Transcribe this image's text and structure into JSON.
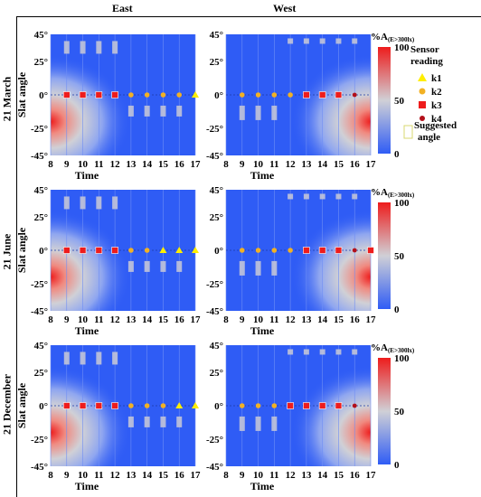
{
  "columns": [
    "East",
    "West"
  ],
  "rows": [
    "21 March",
    "21 June",
    "21 December"
  ],
  "legend": {
    "title": "Sensor reading",
    "items": [
      {
        "label": "k1",
        "color": "#ffee00",
        "shape": "triangle"
      },
      {
        "label": "k2",
        "color": "#f2b124",
        "shape": "circle"
      },
      {
        "label": "k3",
        "color": "#ee1c1c",
        "shape": "square"
      },
      {
        "label": "k4",
        "color": "#b3101a",
        "shape": "small-circle"
      }
    ],
    "suggested_label": "Suggested angle"
  },
  "colorbar": {
    "title_main": "%A",
    "title_sub": "(E>300lx)",
    "ticks": [
      "100",
      "50",
      "0"
    ],
    "colors": {
      "low": "#2f5cf5",
      "mid": "#d0d0d6",
      "high": "#ee1c1c"
    }
  },
  "chart_data": [
    {
      "type": "heatmap",
      "row": "21 March",
      "column": "East",
      "xlabel": "Time",
      "ylabel": "Slat angle",
      "x": [
        8,
        9,
        10,
        11,
        12,
        13,
        14,
        15,
        16,
        17
      ],
      "y_ticks": [
        "45°",
        "25°",
        "0°",
        "-25°",
        "-45°"
      ],
      "ylim": [
        -45,
        45
      ],
      "points": [
        {
          "x": 9,
          "k": "k3"
        },
        {
          "x": 10,
          "k": "k3"
        },
        {
          "x": 11,
          "k": "k3"
        },
        {
          "x": 12,
          "k": "k3"
        },
        {
          "x": 13,
          "k": "k2"
        },
        {
          "x": 14,
          "k": "k2"
        },
        {
          "x": 15,
          "k": "k2"
        },
        {
          "x": 16,
          "k": "k2"
        },
        {
          "x": 17,
          "k": "k1"
        }
      ],
      "hot_side": "left"
    },
    {
      "type": "heatmap",
      "row": "21 March",
      "column": "West",
      "xlabel": "Time",
      "ylabel": "",
      "x": [
        8,
        9,
        10,
        11,
        12,
        13,
        14,
        15,
        16,
        17
      ],
      "y_ticks": [
        "45°",
        "25°",
        "0°",
        "-25°",
        "-45°"
      ],
      "ylim": [
        -45,
        45
      ],
      "points": [
        {
          "x": 9,
          "k": "k2"
        },
        {
          "x": 10,
          "k": "k2"
        },
        {
          "x": 11,
          "k": "k2"
        },
        {
          "x": 12,
          "k": "k2"
        },
        {
          "x": 13,
          "k": "k3"
        },
        {
          "x": 14,
          "k": "k3"
        },
        {
          "x": 15,
          "k": "k3"
        },
        {
          "x": 16,
          "k": "k4"
        }
      ],
      "hot_side": "right"
    },
    {
      "type": "heatmap",
      "row": "21 June",
      "column": "East",
      "xlabel": "Time",
      "ylabel": "Slat angle",
      "x": [
        8,
        9,
        10,
        11,
        12,
        13,
        14,
        15,
        16,
        17
      ],
      "y_ticks": [
        "45°",
        "25°",
        "0°",
        "-25°",
        "-45°"
      ],
      "ylim": [
        -45,
        45
      ],
      "points": [
        {
          "x": 9,
          "k": "k3"
        },
        {
          "x": 10,
          "k": "k3"
        },
        {
          "x": 11,
          "k": "k3"
        },
        {
          "x": 12,
          "k": "k3"
        },
        {
          "x": 13,
          "k": "k2"
        },
        {
          "x": 14,
          "k": "k2"
        },
        {
          "x": 15,
          "k": "k1"
        },
        {
          "x": 16,
          "k": "k1"
        },
        {
          "x": 17,
          "k": "k1"
        }
      ],
      "hot_side": "left"
    },
    {
      "type": "heatmap",
      "row": "21 June",
      "column": "West",
      "xlabel": "Time",
      "ylabel": "",
      "x": [
        8,
        9,
        10,
        11,
        12,
        13,
        14,
        15,
        16,
        17
      ],
      "y_ticks": [
        "45°",
        "25°",
        "0°",
        "-25°",
        "-45°"
      ],
      "ylim": [
        -45,
        45
      ],
      "points": [
        {
          "x": 9,
          "k": "k2"
        },
        {
          "x": 10,
          "k": "k2"
        },
        {
          "x": 11,
          "k": "k2"
        },
        {
          "x": 12,
          "k": "k2"
        },
        {
          "x": 13,
          "k": "k3"
        },
        {
          "x": 14,
          "k": "k3"
        },
        {
          "x": 15,
          "k": "k3"
        },
        {
          "x": 16,
          "k": "k4"
        },
        {
          "x": 17,
          "k": "k3"
        }
      ],
      "hot_side": "right"
    },
    {
      "type": "heatmap",
      "row": "21 December",
      "column": "East",
      "xlabel": "Time",
      "ylabel": "Slat angle",
      "x": [
        8,
        9,
        10,
        11,
        12,
        13,
        14,
        15,
        16,
        17
      ],
      "y_ticks": [
        "45°",
        "25°",
        "0°",
        "-25°",
        "-45°"
      ],
      "ylim": [
        -45,
        45
      ],
      "points": [
        {
          "x": 9,
          "k": "k3"
        },
        {
          "x": 10,
          "k": "k3"
        },
        {
          "x": 11,
          "k": "k3"
        },
        {
          "x": 12,
          "k": "k3"
        },
        {
          "x": 13,
          "k": "k2"
        },
        {
          "x": 14,
          "k": "k2"
        },
        {
          "x": 15,
          "k": "k2"
        },
        {
          "x": 16,
          "k": "k1"
        },
        {
          "x": 17,
          "k": "k1"
        }
      ],
      "hot_side": "left"
    },
    {
      "type": "heatmap",
      "row": "21 December",
      "column": "West",
      "xlabel": "Time",
      "ylabel": "",
      "x": [
        8,
        9,
        10,
        11,
        12,
        13,
        14,
        15,
        16,
        17
      ],
      "y_ticks": [
        "45°",
        "25°",
        "0°",
        "-25°",
        "-45°"
      ],
      "ylim": [
        -45,
        45
      ],
      "points": [
        {
          "x": 9,
          "k": "k2"
        },
        {
          "x": 10,
          "k": "k2"
        },
        {
          "x": 11,
          "k": "k2"
        },
        {
          "x": 12,
          "k": "k3"
        },
        {
          "x": 13,
          "k": "k3"
        },
        {
          "x": 14,
          "k": "k3"
        },
        {
          "x": 15,
          "k": "k3"
        },
        {
          "x": 16,
          "k": "k4"
        }
      ],
      "hot_side": "right"
    }
  ]
}
